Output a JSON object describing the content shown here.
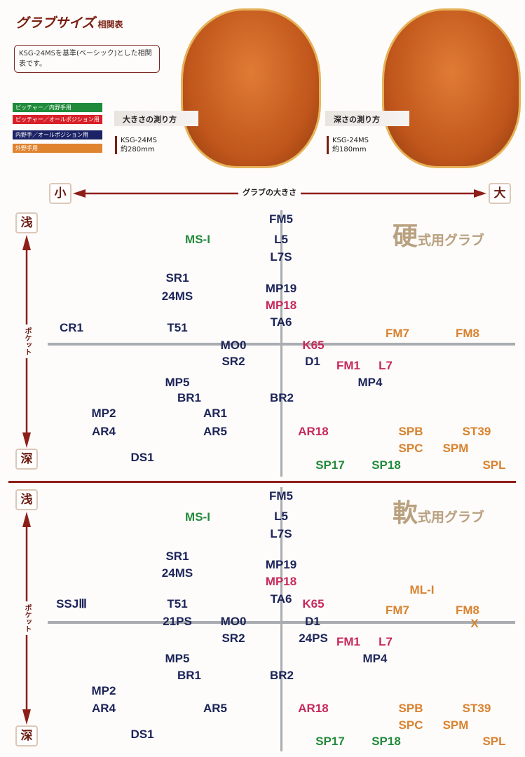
{
  "header": {
    "title": "グラブサイズ",
    "title_suffix": "相関表",
    "note": "KSG-24MSを基準(ベーシック)とした相関表です。"
  },
  "legend": [
    {
      "label": "ピッチャー／内野手用",
      "color": "#1e8a3a"
    },
    {
      "label": "ピッチャー／オールポジション用",
      "color": "#d8202a"
    },
    {
      "label": "内野手／オールポジション用",
      "color": "#1c2266"
    },
    {
      "label": "外野手用",
      "color": "#e0832e"
    }
  ],
  "measure": {
    "size_title": "大きさの測り方",
    "size_model": "KSG-24MS",
    "size_value": "約280mm",
    "depth_title": "深さの測り方",
    "depth_model": "KSG-24MS",
    "depth_value": "約180mm"
  },
  "axes": {
    "small": "小",
    "large": "大",
    "x_label": "グラブの大きさ",
    "shallow": "浅",
    "deep": "深",
    "y_label": "ポケット"
  },
  "colors": {
    "navy": "#1c2458",
    "green": "#238a3c",
    "crimson": "#c62a5a",
    "orange": "#d9822e",
    "divider": "#8e1f18"
  },
  "hard": {
    "title_big": "硬",
    "title_rest": "式用グラブ",
    "labels": [
      [
        "FM5",
        "navy"
      ],
      [
        "MS-I",
        "green"
      ],
      [
        "L5",
        "navy"
      ],
      [
        "L7S",
        "navy"
      ],
      [
        "SR1",
        "navy"
      ],
      [
        "24MS",
        "navy"
      ],
      [
        "MP19",
        "navy"
      ],
      [
        "MP18",
        "crimson"
      ],
      [
        "TA6",
        "navy"
      ],
      [
        "CR1",
        "navy"
      ],
      [
        "T51",
        "navy"
      ],
      [
        "FM7",
        "orange"
      ],
      [
        "FM8",
        "orange"
      ],
      [
        "MO0",
        "navy"
      ],
      [
        "K65",
        "crimson"
      ],
      [
        "SR2",
        "navy"
      ],
      [
        "D1",
        "navy"
      ],
      [
        "FM1",
        "crimson"
      ],
      [
        "L7",
        "crimson"
      ],
      [
        "MP4",
        "navy"
      ],
      [
        "MP5",
        "navy"
      ],
      [
        "BR1",
        "navy"
      ],
      [
        "BR2",
        "navy"
      ],
      [
        "MP2",
        "navy"
      ],
      [
        "AR1",
        "navy"
      ],
      [
        "AR4",
        "navy"
      ],
      [
        "AR5",
        "navy"
      ],
      [
        "AR18",
        "crimson"
      ],
      [
        "SPB",
        "orange"
      ],
      [
        "ST39",
        "orange"
      ],
      [
        "SPC",
        "orange"
      ],
      [
        "SPM",
        "orange"
      ],
      [
        "DS1",
        "navy"
      ],
      [
        "SP17",
        "green"
      ],
      [
        "SP18",
        "green"
      ],
      [
        "SPL",
        "orange"
      ]
    ]
  },
  "soft": {
    "title_big": "軟",
    "title_rest": "式用グラブ",
    "labels": [
      [
        "FM5",
        "navy"
      ],
      [
        "MS-I",
        "green"
      ],
      [
        "L5",
        "navy"
      ],
      [
        "L7S",
        "navy"
      ],
      [
        "SR1",
        "navy"
      ],
      [
        "24MS",
        "navy"
      ],
      [
        "MP19",
        "navy"
      ],
      [
        "MP18",
        "crimson"
      ],
      [
        "TA6",
        "navy"
      ],
      [
        "SSJⅢ",
        "navy"
      ],
      [
        "T51",
        "navy"
      ],
      [
        "ML-I",
        "orange"
      ],
      [
        "FM7",
        "orange"
      ],
      [
        "FM8",
        "orange"
      ],
      [
        "X",
        "orange"
      ],
      [
        "21PS",
        "navy"
      ],
      [
        "MO0",
        "navy"
      ],
      [
        "K65",
        "crimson"
      ],
      [
        "D1",
        "navy"
      ],
      [
        "SR2",
        "navy"
      ],
      [
        "24PS",
        "navy"
      ],
      [
        "FM1",
        "crimson"
      ],
      [
        "L7",
        "crimson"
      ],
      [
        "MP4",
        "navy"
      ],
      [
        "MP5",
        "navy"
      ],
      [
        "BR1",
        "navy"
      ],
      [
        "BR2",
        "navy"
      ],
      [
        "MP2",
        "navy"
      ],
      [
        "AR4",
        "navy"
      ],
      [
        "AR5",
        "navy"
      ],
      [
        "AR18",
        "crimson"
      ],
      [
        "SPB",
        "orange"
      ],
      [
        "ST39",
        "orange"
      ],
      [
        "SPC",
        "orange"
      ],
      [
        "SPM",
        "orange"
      ],
      [
        "DS1",
        "navy"
      ],
      [
        "SP17",
        "green"
      ],
      [
        "SP18",
        "green"
      ],
      [
        "SPL",
        "orange"
      ]
    ]
  }
}
